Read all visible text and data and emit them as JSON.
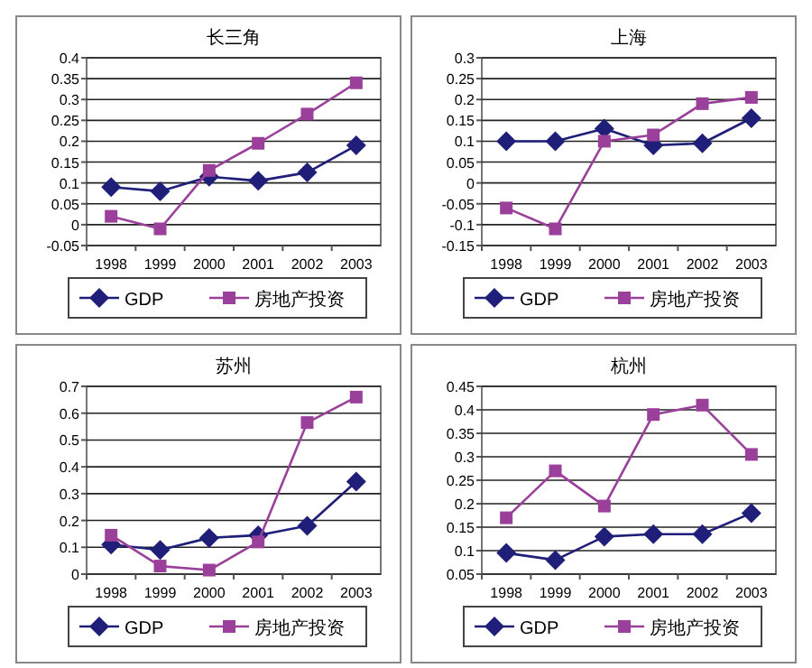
{
  "chart_data": [
    {
      "type": "line",
      "title": "长三角",
      "categories": [
        "1998",
        "1999",
        "2000",
        "2001",
        "2002",
        "2003"
      ],
      "ylim": [
        -0.05,
        0.4
      ],
      "yticks": [
        -0.05,
        0,
        0.05,
        0.1,
        0.15,
        0.2,
        0.25,
        0.3,
        0.35,
        0.4
      ],
      "grid": "y",
      "legend": "bottom",
      "series": [
        {
          "name": "GDP",
          "color": "#1f1f7a",
          "marker": "diamond",
          "values": [
            0.09,
            0.08,
            0.115,
            0.105,
            0.125,
            0.19
          ]
        },
        {
          "name": "房地产投资",
          "color": "#9a409a",
          "marker": "square",
          "values": [
            0.02,
            -0.01,
            0.13,
            0.195,
            0.265,
            0.34
          ]
        }
      ]
    },
    {
      "type": "line",
      "title": "上海",
      "categories": [
        "1998",
        "1999",
        "2000",
        "2001",
        "2002",
        "2003"
      ],
      "ylim": [
        -0.15,
        0.3
      ],
      "yticks": [
        -0.15,
        -0.1,
        -0.05,
        0,
        0.05,
        0.1,
        0.15,
        0.2,
        0.25,
        0.3
      ],
      "grid": "y",
      "legend": "bottom",
      "series": [
        {
          "name": "GDP",
          "color": "#1f1f7a",
          "marker": "diamond",
          "values": [
            0.1,
            0.1,
            0.13,
            0.09,
            0.095,
            0.155
          ]
        },
        {
          "name": "房地产投资",
          "color": "#9a409a",
          "marker": "square",
          "values": [
            -0.06,
            -0.11,
            0.1,
            0.115,
            0.19,
            0.205
          ]
        }
      ]
    },
    {
      "type": "line",
      "title": "苏州",
      "categories": [
        "1998",
        "1999",
        "2000",
        "2001",
        "2002",
        "2003"
      ],
      "ylim": [
        0,
        0.7
      ],
      "yticks": [
        0,
        0.1,
        0.2,
        0.3,
        0.4,
        0.5,
        0.6,
        0.7
      ],
      "grid": "y",
      "legend": "bottom",
      "series": [
        {
          "name": "GDP",
          "color": "#1f1f7a",
          "marker": "diamond",
          "values": [
            0.11,
            0.09,
            0.135,
            0.145,
            0.18,
            0.345
          ]
        },
        {
          "name": "房地产投资",
          "color": "#9a409a",
          "marker": "square",
          "values": [
            0.145,
            0.03,
            0.015,
            0.12,
            0.565,
            0.66
          ]
        }
      ]
    },
    {
      "type": "line",
      "title": "杭州",
      "categories": [
        "1998",
        "1999",
        "2000",
        "2001",
        "2002",
        "2003"
      ],
      "ylim": [
        0.05,
        0.45
      ],
      "yticks": [
        0.05,
        0.1,
        0.15,
        0.2,
        0.25,
        0.3,
        0.35,
        0.4,
        0.45
      ],
      "grid": "y",
      "legend": "bottom",
      "series": [
        {
          "name": "GDP",
          "color": "#1f1f7a",
          "marker": "diamond",
          "values": [
            0.095,
            0.08,
            0.13,
            0.135,
            0.135,
            0.18
          ]
        },
        {
          "name": "房地产投资",
          "color": "#9a409a",
          "marker": "square",
          "values": [
            0.17,
            0.27,
            0.195,
            0.39,
            0.41,
            0.305
          ]
        }
      ]
    }
  ]
}
